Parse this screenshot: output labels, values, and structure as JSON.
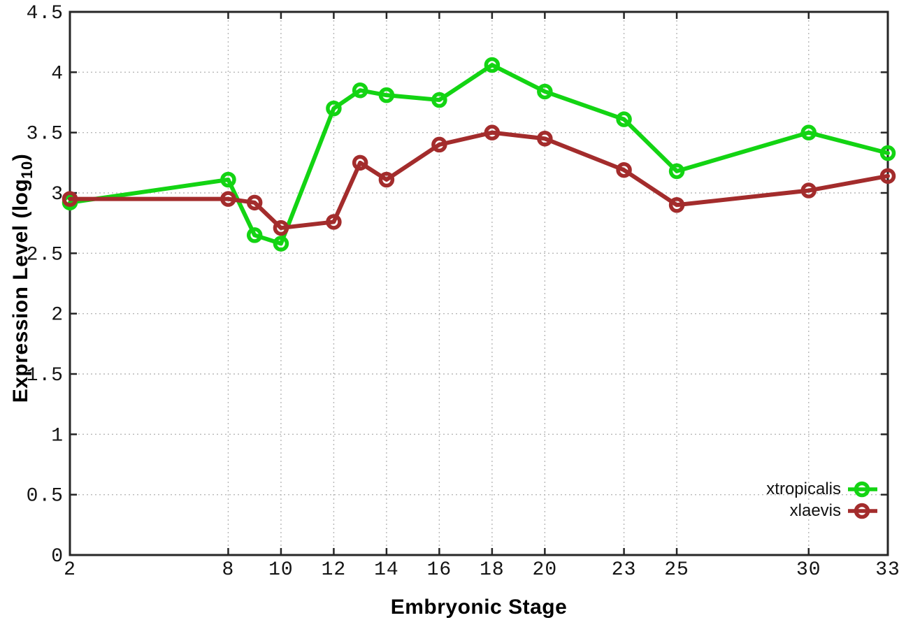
{
  "chart_data": {
    "type": "line",
    "title": "",
    "xlabel": "Embryonic Stage",
    "ylabel": {
      "prefix": "Expression Level (log",
      "sub": "10",
      "suffix": ")"
    },
    "xlim": [
      2,
      33
    ],
    "ylim": [
      0,
      4.5
    ],
    "grid": true,
    "x_ticks": [
      2,
      8,
      10,
      12,
      14,
      16,
      18,
      20,
      23,
      25,
      30,
      33
    ],
    "y_ticks": [
      0,
      0.5,
      1,
      1.5,
      2,
      2.5,
      3,
      3.5,
      4,
      4.5
    ],
    "x_grid_lines": [
      8,
      10,
      12,
      14,
      16,
      18,
      20,
      23,
      25,
      30
    ],
    "legend_position": "bottom-right",
    "x": [
      2,
      8,
      9,
      10,
      12,
      13,
      14,
      16,
      18,
      20,
      23,
      25,
      30,
      33
    ],
    "series": [
      {
        "name": "xtropicalis",
        "color": "#13d413",
        "values": [
          2.92,
          3.11,
          2.65,
          2.58,
          3.7,
          3.85,
          3.81,
          3.77,
          4.06,
          3.84,
          3.61,
          3.18,
          3.5,
          3.33
        ]
      },
      {
        "name": "xlaevis",
        "color": "#a32c2c",
        "values": [
          2.95,
          2.95,
          2.92,
          2.71,
          2.76,
          3.25,
          3.11,
          3.4,
          3.5,
          3.45,
          3.19,
          2.9,
          3.02,
          3.14
        ]
      }
    ]
  },
  "colors": {
    "grid": "#b8b8b8",
    "axis": "#262626",
    "tick_text": "#141414",
    "background": "#ffffff"
  }
}
